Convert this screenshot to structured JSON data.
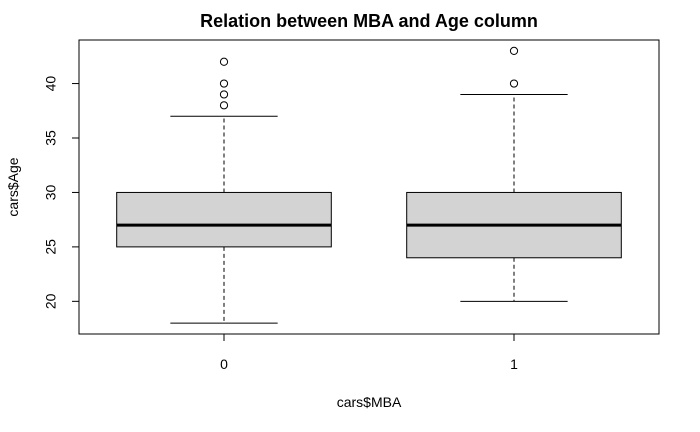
{
  "chart_data": {
    "type": "box",
    "title": "Relation between MBA and Age column",
    "xlabel": "cars$MBA",
    "ylabel": "cars$Age",
    "categories": [
      "0",
      "1"
    ],
    "ylim": [
      17,
      44
    ],
    "yticks": [
      20,
      25,
      30,
      35,
      40
    ],
    "grid": false,
    "legend": "none",
    "boxes": [
      {
        "category": "0",
        "whisker_low": 18,
        "q1": 25,
        "median": 27,
        "q3": 30,
        "whisker_high": 37,
        "outliers": [
          38,
          39,
          40,
          42
        ]
      },
      {
        "category": "1",
        "whisker_low": 20,
        "q1": 24,
        "median": 27,
        "q3": 30,
        "whisker_high": 39,
        "outliers": [
          40,
          43
        ]
      }
    ],
    "colors": {
      "box_fill": "#d3d3d3",
      "stroke": "#000000"
    }
  }
}
